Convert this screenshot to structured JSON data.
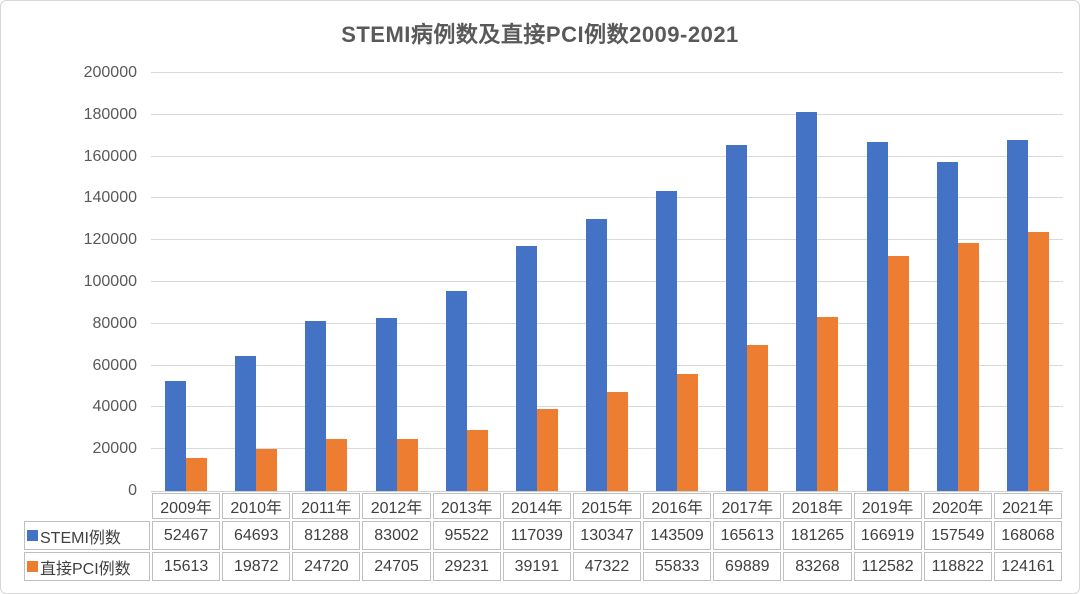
{
  "title": "STEMI病例数及直接PCI例数2009-2021",
  "colors": {
    "stemi_bar": "#4472C4",
    "pci_bar": "#ED7D31",
    "gridline": "#D9D9D9",
    "axis_text": "#595959",
    "table_border": "#BFBFBF",
    "table_text": "#404040",
    "title_text": "#595959"
  },
  "chart_data": {
    "type": "bar",
    "title": "STEMI病例数及直接PCI例数2009-2021",
    "xlabel": "",
    "ylabel": "",
    "grid": true,
    "legend_position": "data-table-left",
    "ylim": [
      0,
      200000
    ],
    "ytick_step": 20000,
    "yticks": [
      0,
      20000,
      40000,
      60000,
      80000,
      100000,
      120000,
      140000,
      160000,
      180000,
      200000
    ],
    "categories": [
      "2009年",
      "2010年",
      "2011年",
      "2012年",
      "2013年",
      "2014年",
      "2015年",
      "2016年",
      "2017年",
      "2018年",
      "2019年",
      "2020年",
      "2021年"
    ],
    "series": [
      {
        "name": "STEMI例数",
        "color": "#4472C4",
        "values": [
          52467,
          64693,
          81288,
          83002,
          95522,
          117039,
          130347,
          143509,
          165613,
          181265,
          166919,
          157549,
          168068
        ]
      },
      {
        "name": "直接PCI例数",
        "color": "#ED7D31",
        "values": [
          15613,
          19872,
          24720,
          24705,
          29231,
          39191,
          47322,
          55833,
          69889,
          83268,
          112582,
          118822,
          124161
        ]
      }
    ]
  }
}
